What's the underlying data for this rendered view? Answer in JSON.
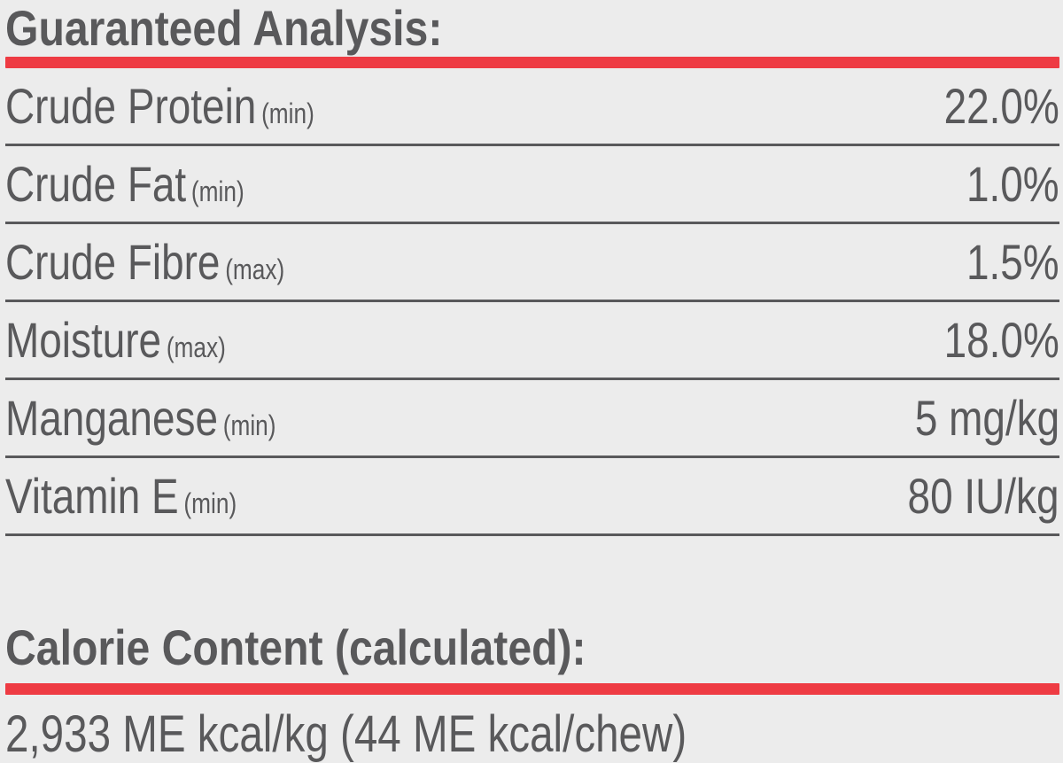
{
  "colors": {
    "background": "#ececec",
    "text_gray": "#59595b",
    "accent_red": "#ee3b43"
  },
  "guaranteed_analysis": {
    "title": "Guaranteed Analysis:",
    "rows": [
      {
        "label": "Crude Protein",
        "qualifier": "(min)",
        "value": "22.0%"
      },
      {
        "label": "Crude Fat",
        "qualifier": "(min)",
        "value": "1.0%"
      },
      {
        "label": "Crude Fibre",
        "qualifier": "(max)",
        "value": "1.5%"
      },
      {
        "label": "Moisture",
        "qualifier": "(max)",
        "value": "18.0%"
      },
      {
        "label": "Manganese",
        "qualifier": "(min)",
        "value": "5 mg/kg"
      },
      {
        "label": "Vitamin E",
        "qualifier": "(min)",
        "value": "80 IU/kg"
      }
    ]
  },
  "calorie_content": {
    "title": "Calorie Content (calculated):",
    "value": "2,933 ME kcal/kg (44 ME kcal/chew)"
  }
}
